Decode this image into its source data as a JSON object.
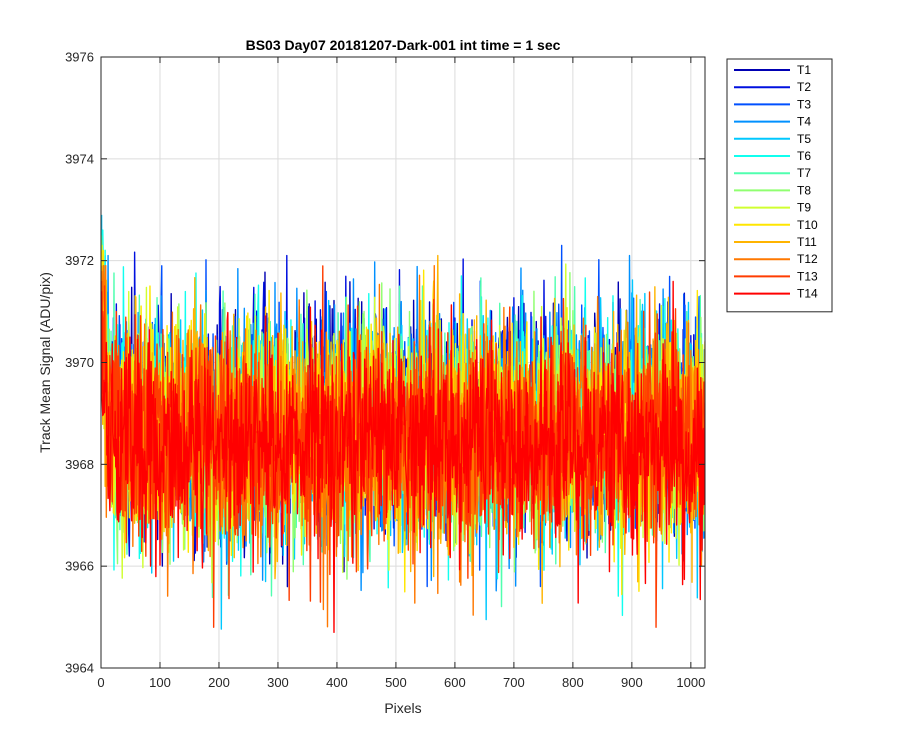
{
  "chart_data": {
    "type": "line",
    "title": "BS03 Day07 20181207-Dark-001 int time = 1 sec",
    "xlabel": "Pixels",
    "ylabel": "Track Mean Signal (ADU/pix)",
    "xlim": [
      0,
      1024
    ],
    "ylim": [
      3964,
      3976
    ],
    "xticks": [
      0,
      100,
      200,
      300,
      400,
      500,
      600,
      700,
      800,
      900,
      1000
    ],
    "yticks": [
      3964,
      3966,
      3968,
      3970,
      3972,
      3974,
      3976
    ],
    "grid": true,
    "legend_position": "outside-top-right",
    "series": [
      {
        "name": "T1",
        "color": "#0000b3",
        "mean": 3968.9,
        "spread": 1.05,
        "start_value": 3973.8,
        "max": 3971.9,
        "min": 3965.3
      },
      {
        "name": "T2",
        "color": "#0010df",
        "mean": 3968.9,
        "spread": 1.05,
        "start_value": 3973.5,
        "max": 3972.4,
        "min": 3965.5
      },
      {
        "name": "T3",
        "color": "#0050ff",
        "mean": 3968.8,
        "spread": 1.05,
        "start_value": 3973.3,
        "max": 3972.3,
        "min": 3965.6
      },
      {
        "name": "T4",
        "color": "#0090ff",
        "mean": 3968.8,
        "spread": 1.05,
        "start_value": 3973.0,
        "max": 3972.1,
        "min": 3965.3
      },
      {
        "name": "T5",
        "color": "#00c8ff",
        "mean": 3968.7,
        "spread": 1.05,
        "start_value": 3972.9,
        "max": 3973.2,
        "min": 3964.5
      },
      {
        "name": "T6",
        "color": "#10ffef",
        "mean": 3968.7,
        "spread": 1.05,
        "start_value": 3973.6,
        "max": 3972.6,
        "min": 3964.8
      },
      {
        "name": "T7",
        "color": "#50ffaf",
        "mean": 3968.7,
        "spread": 1.05,
        "start_value": 3972.8,
        "max": 3972.5,
        "min": 3965.0
      },
      {
        "name": "T8",
        "color": "#90ff70",
        "mean": 3968.6,
        "spread": 1.05,
        "start_value": 3972.6,
        "max": 3972.4,
        "min": 3964.6
      },
      {
        "name": "T9",
        "color": "#d0ff30",
        "mean": 3968.6,
        "spread": 1.05,
        "start_value": 3972.4,
        "max": 3972.3,
        "min": 3964.3
      },
      {
        "name": "T10",
        "color": "#ffe600",
        "mean": 3968.6,
        "spread": 1.05,
        "start_value": 3972.2,
        "max": 3972.2,
        "min": 3964.3
      },
      {
        "name": "T11",
        "color": "#ffb400",
        "mean": 3968.5,
        "spread": 1.05,
        "start_value": 3971.9,
        "max": 3972.1,
        "min": 3964.4
      },
      {
        "name": "T12",
        "color": "#ff7800",
        "mean": 3968.5,
        "spread": 1.05,
        "start_value": 3971.8,
        "max": 3971.9,
        "min": 3964.7
      },
      {
        "name": "T13",
        "color": "#ff3c00",
        "mean": 3968.5,
        "spread": 1.05,
        "start_value": 3971.6,
        "max": 3972.1,
        "min": 3964.8
      },
      {
        "name": "T14",
        "color": "#ff0000",
        "mean": 3968.4,
        "spread": 1.0,
        "start_value": 3971.4,
        "max": 3972.4,
        "min": 3964.7
      }
    ]
  }
}
